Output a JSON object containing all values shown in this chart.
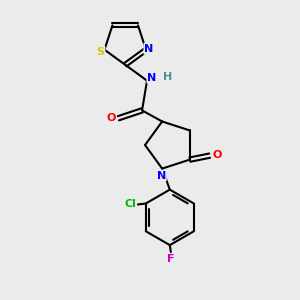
{
  "background_color": "#ebebeb",
  "bond_color": "#000000",
  "atom_colors": {
    "N": "#0000ff",
    "O": "#ff0000",
    "S": "#cccc00",
    "Cl": "#00bb00",
    "F": "#cc00cc",
    "H": "#4a9090",
    "C": "#000000"
  },
  "figsize": [
    3.0,
    3.0
  ],
  "dpi": 100
}
